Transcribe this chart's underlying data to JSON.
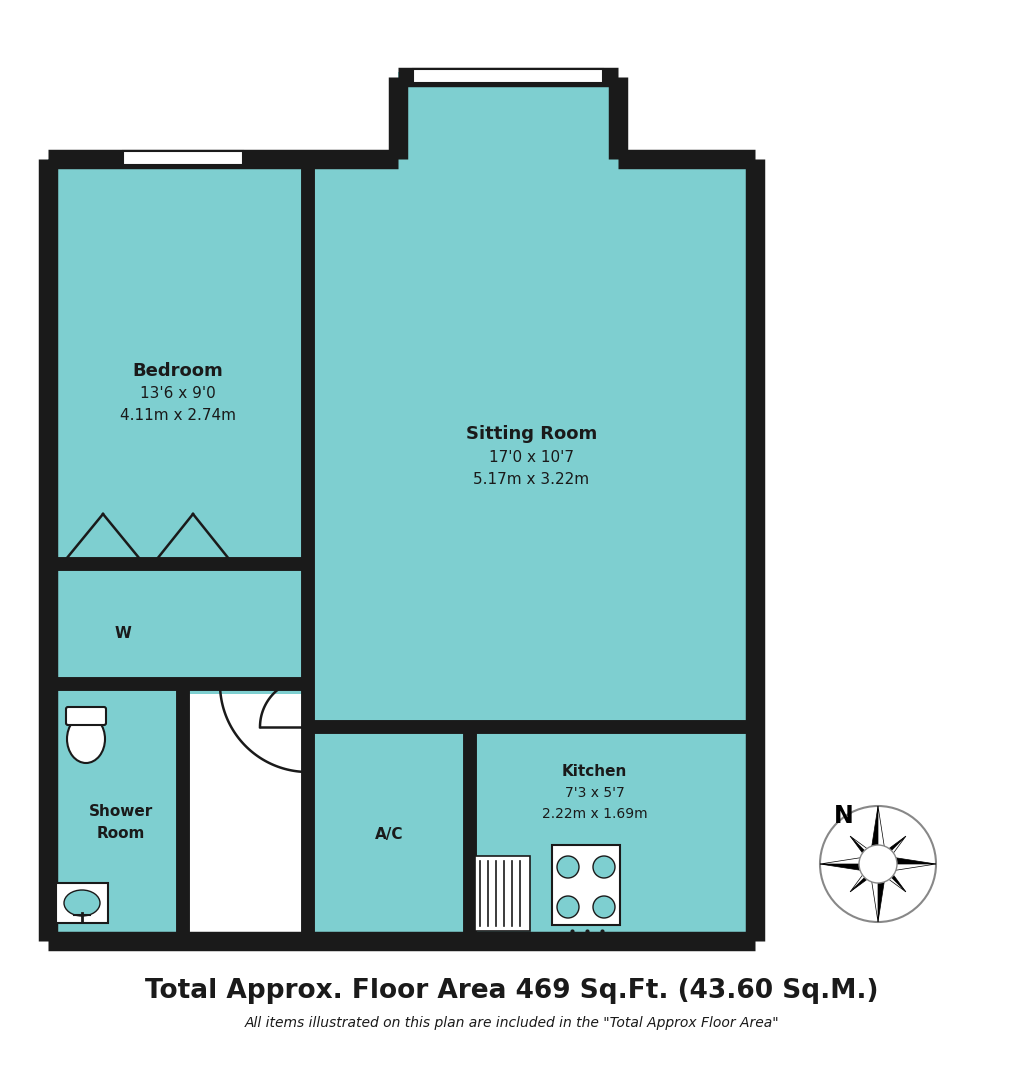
{
  "bg_color": "#ffffff",
  "wall_color": "#1a1a1a",
  "floor_color": "#7ecfd0",
  "title": "Total Approx. Floor Area 469 Sq.Ft. (43.60 Sq.M.)",
  "subtitle": "All items illustrated on this plan are included in the \"Total Approx Floor Area\"",
  "bedroom_line1": "Bedroom",
  "bedroom_line2": "13'6 x 9'0",
  "bedroom_line3": "4.11m x 2.74m",
  "sitting_line1": "Sitting Room",
  "sitting_line2": "17'0 x 10'7",
  "sitting_line3": "5.17m x 3.22m",
  "kitchen_line1": "Kitchen",
  "kitchen_line2": "7'3 x 5'7",
  "kitchen_line3": "2.22m x 1.69m",
  "shower_line1": "Shower",
  "shower_line2": "Room",
  "wardrobe_label": "W",
  "ac_label": "A/C"
}
